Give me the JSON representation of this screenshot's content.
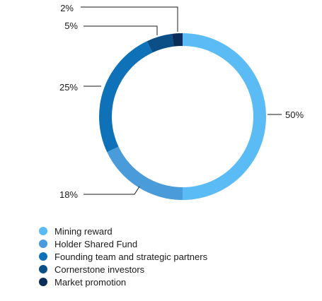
{
  "chart_data": {
    "type": "pie",
    "variant": "donut",
    "title": "",
    "slices": [
      {
        "label": "Mining reward",
        "value": 50,
        "display": "50%",
        "color": "#5bbcf5"
      },
      {
        "label": "Holder Shared Fund",
        "value": 18,
        "display": "18%",
        "color": "#4a9bd9"
      },
      {
        "label": "Founding team and strategic partners",
        "value": 25,
        "display": "25%",
        "color": "#0f72b8"
      },
      {
        "label": "Cornerstone investors",
        "value": 5,
        "display": "5%",
        "color": "#0b4f86"
      },
      {
        "label": "Market promotion",
        "value": 2,
        "display": "2%",
        "color": "#0a2e59"
      }
    ],
    "legend_position": "bottom-left"
  }
}
